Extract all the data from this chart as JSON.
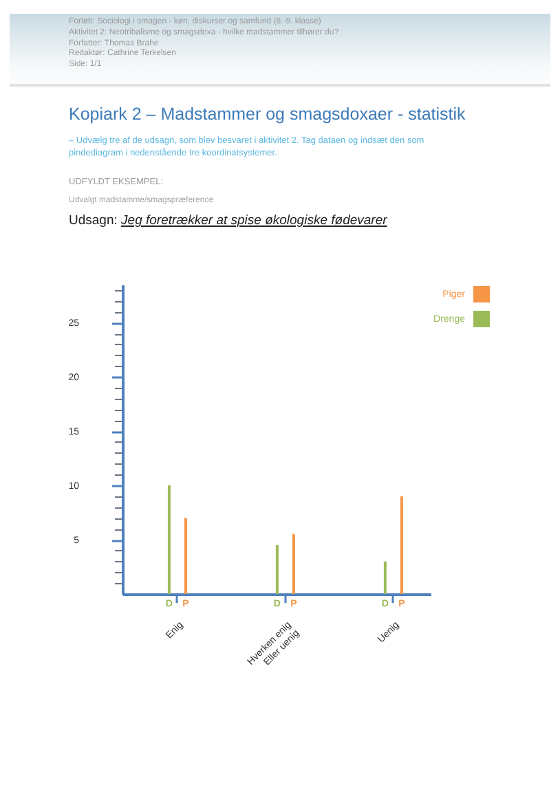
{
  "chart_data": {
    "type": "bar",
    "title": "Kopiark 2 – Madstammer og smagsdoxaer - statistik",
    "subtitle": "– Udvælg tre af de udsagn, som blev besvaret i aktivitet 2. Tag dataen og indsæt den som pindediagram i nedenstående tre koordinatsystemer.",
    "annotations": [
      "Forløb: Sociologi i smagen - køn, diskurser og samfund (8.-9. klasse)",
      "Aktivitet 2: Neotribalisme og smagsdoxa - hvilke madstammer tilhører du?",
      "Forfatter: Thomas Brahe",
      "Redaktør: Cathrine Terkelsen",
      "Side: 1/1",
      "UDFYLDT EKSEMPEL:",
      "Udvalgt madstamme/smagspræference",
      "Udsagn: Jeg foretrækker at spise økologiske fødevarer",
      {
        "text": "D",
        "x": "Enig",
        "y": 0
      },
      {
        "text": "P",
        "x": "Enig",
        "y": 0
      },
      {
        "text": "D",
        "x": "Hverken enig\nEller uenig",
        "y": 0
      },
      {
        "text": "P",
        "x": "Hverken enig\nEller uenig",
        "y": 0
      },
      {
        "text": "D",
        "x": "Uenig",
        "y": 0
      },
      {
        "text": "P",
        "x": "Uenig",
        "y": 0
      }
    ],
    "categories": [
      "Enig",
      "Hverken enig\nEller uenig",
      "Uenig"
    ],
    "series": [
      {
        "name": "Drenge",
        "color": "#9bbb59",
        "values": [
          10,
          4.5,
          3
        ]
      },
      {
        "name": "Piger",
        "color": "#f79646",
        "values": [
          7,
          5.5,
          9
        ]
      }
    ],
    "ylim": [
      0,
      28.5
    ],
    "yticks": [
      {
        "value": 1,
        "label": null
      },
      {
        "value": 2,
        "label": null
      },
      {
        "value": 3,
        "label": null
      },
      {
        "value": 4,
        "label": null
      },
      5,
      {
        "value": 6,
        "label": null
      },
      {
        "value": 7,
        "label": null
      },
      {
        "value": 8,
        "label": null
      },
      {
        "value": 9,
        "label": null
      },
      10,
      {
        "value": 11,
        "label": null
      },
      {
        "value": 12,
        "label": null
      },
      {
        "value": 13,
        "label": null
      },
      {
        "value": 14,
        "label": null
      },
      15,
      {
        "value": 16,
        "label": null
      },
      {
        "value": 17,
        "label": null
      },
      {
        "value": 18,
        "label": null
      },
      {
        "value": 19,
        "label": null
      },
      20,
      {
        "value": 21,
        "label": null
      },
      {
        "value": 22,
        "label": null
      },
      {
        "value": 23,
        "label": null
      },
      {
        "value": 24,
        "label": null
      },
      25,
      {
        "value": 26,
        "label": null
      },
      {
        "value": 27,
        "label": null
      },
      {
        "value": 28,
        "label": null
      }
    ],
    "legend": "top right"
  }
}
